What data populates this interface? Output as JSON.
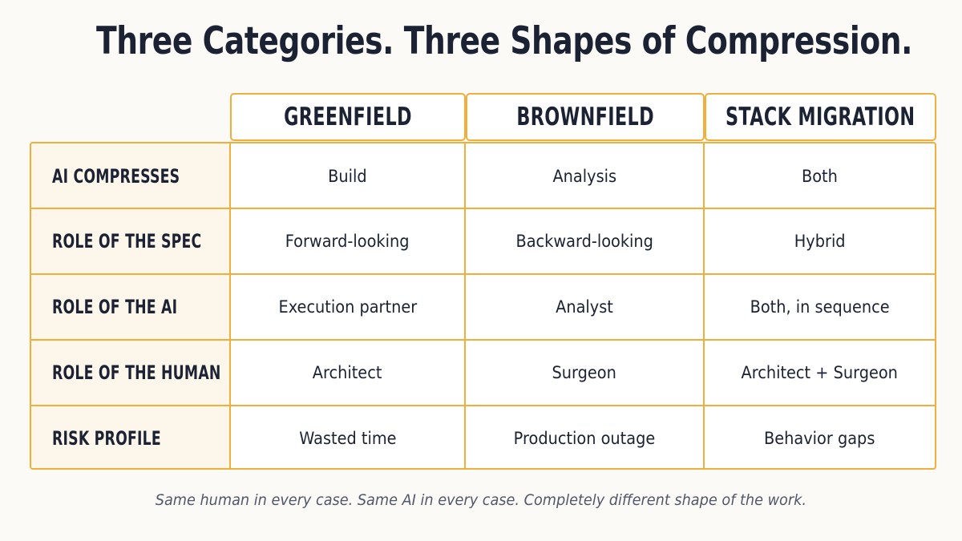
{
  "title": "Three Categories. Three Shapes of Compression.",
  "columns": [
    "GREENFIELD",
    "BROWNFIELD",
    "STACK MIGRATION"
  ],
  "rows": [
    {
      "label": "AI COMPRESSES",
      "values": [
        "Build",
        "Analysis",
        "Both"
      ]
    },
    {
      "label": "ROLE OF THE SPEC",
      "values": [
        "Forward-looking",
        "Backward-looking",
        "Hybrid"
      ]
    },
    {
      "label": "ROLE OF THE AI",
      "values": [
        "Execution partner",
        "Analyst",
        "Both, in sequence"
      ]
    },
    {
      "label": "ROLE OF THE HUMAN",
      "values": [
        "Architect",
        "Surgeon",
        "Architect + Surgeon"
      ]
    },
    {
      "label": "RISK PROFILE",
      "values": [
        "Wasted time",
        "Production outage",
        "Behavior gaps"
      ]
    }
  ],
  "footer": "Same human in every case. Same AI in every case. Completely different shape of the work.",
  "colors": {
    "accent_border": "#f0ae3a",
    "label_fill": "#fdf6ea",
    "text": "#1b2233",
    "footer_text": "#4f5768",
    "background": "#fbfaf6"
  }
}
